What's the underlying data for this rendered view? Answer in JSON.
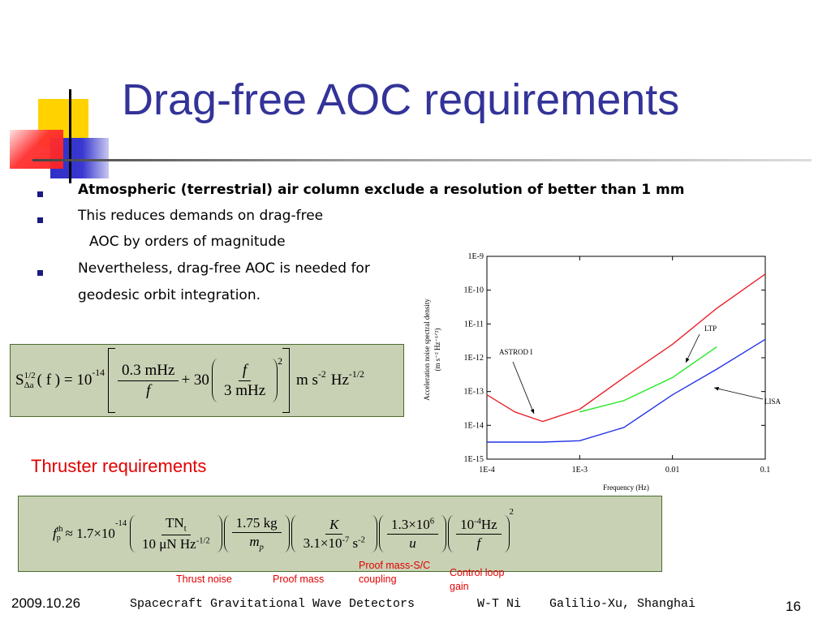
{
  "title": "Drag-free AOC requirements",
  "bullets": [
    [
      "Atmospheric (terrestrial) air column exclude a resolution of better than 1 mm"
    ],
    [
      "This reduces demands on drag-free",
      "AOC by orders of magnitude"
    ],
    [
      "Nevertheless, drag-free AOC is needed for",
      "geodesic orbit integration."
    ]
  ],
  "equation_1": {
    "s": "S",
    "s_sup": "1/2",
    "s_sub": "Δa",
    "arg": "( f ) = 10",
    "exp": "-14",
    "t1_num": "0.3 mHz",
    "t1_den": "f",
    "plus": "+ 30",
    "t2_num": "f",
    "t2_den": "3 mHz",
    "power": "2",
    "unit_1": "m s",
    "unit_1_exp": "-2",
    "unit_2": "Hz",
    "unit_2_exp": "-1/2"
  },
  "thruster_heading": "Thruster requirements",
  "equation_2": {
    "f": "f",
    "f_sup": "th",
    "f_sub": "p",
    "approx": "≈ 1.7×10",
    "exp": "-14",
    "a_num": "TN",
    "a_num_sub": "t",
    "a_den": "10 μN Hz",
    "a_den_exp": "-1/2",
    "b_num": "1.75 kg",
    "b_den": "m",
    "b_den_sub": "p",
    "c_num": "K",
    "c_den": "3.1×10",
    "c_den_exp": "-7",
    "c_den_unit": "s",
    "c_den_unit_exp": "-2",
    "d_num": "1.3×10",
    "d_num_exp": "6",
    "d_den": "u",
    "e_num": "10",
    "e_num_exp": "-4",
    "e_num_unit": "Hz",
    "e_den": "f",
    "power": "2"
  },
  "factor_labels": [
    "Thrust noise",
    "Proof mass",
    "Proof mass-S/C coupling",
    "Control loop gain"
  ],
  "footer": {
    "date": "2009.10.26",
    "talk": "Spacecraft Gravitational Wave Detectors",
    "author": "W-T Ni",
    "venue": "Galilio-Xu, Shanghai",
    "page": "16"
  },
  "chart_data": {
    "type": "line",
    "x": [
      0.0001,
      0.0002,
      0.0004,
      0.001,
      0.003,
      0.01,
      0.03,
      0.1
    ],
    "series": [
      {
        "name": "ASTROD I",
        "color": "#e8232a",
        "values": [
          8e-14,
          2.5e-14,
          1.3e-14,
          3e-14,
          2.6e-13,
          2.5e-12,
          2.9e-11,
          3e-10
        ]
      },
      {
        "name": "LTP",
        "color": "#22e822",
        "values": [
          null,
          null,
          null,
          2.5e-14,
          5.4e-14,
          2.6e-13,
          2.1e-12,
          null
        ]
      },
      {
        "name": "LISA",
        "color": "#2233e8",
        "values": [
          3.2e-15,
          3.2e-15,
          3.2e-15,
          3.5e-15,
          8.7e-15,
          8e-14,
          4.6e-13,
          3.5e-12
        ]
      }
    ],
    "xlabel": "Frequency (Hz)",
    "ylabel": [
      "Acceleration noise spectral density",
      "(m s⁻² Hz⁻¹ᐟ²)"
    ],
    "xscale": "log",
    "yscale": "log",
    "xlim": [
      0.0001,
      0.1
    ],
    "ylim": [
      1e-15,
      1e-09
    ],
    "xticks": [
      {
        "value": 0.0001,
        "label": "1E-4"
      },
      {
        "value": 0.001,
        "label": "1E-3"
      },
      0.01,
      0.1
    ],
    "yticks": [
      {
        "value": 1e-15,
        "label": "1E-15"
      },
      {
        "value": 1e-14,
        "label": "1E-14"
      },
      {
        "value": 1e-13,
        "label": "1E-13"
      },
      {
        "value": 1e-12,
        "label": "1E-12"
      },
      {
        "value": 1e-11,
        "label": "1E-11"
      },
      {
        "value": 1e-10,
        "label": "1E-10"
      },
      {
        "value": 1e-09,
        "label": "1E-9"
      }
    ]
  }
}
